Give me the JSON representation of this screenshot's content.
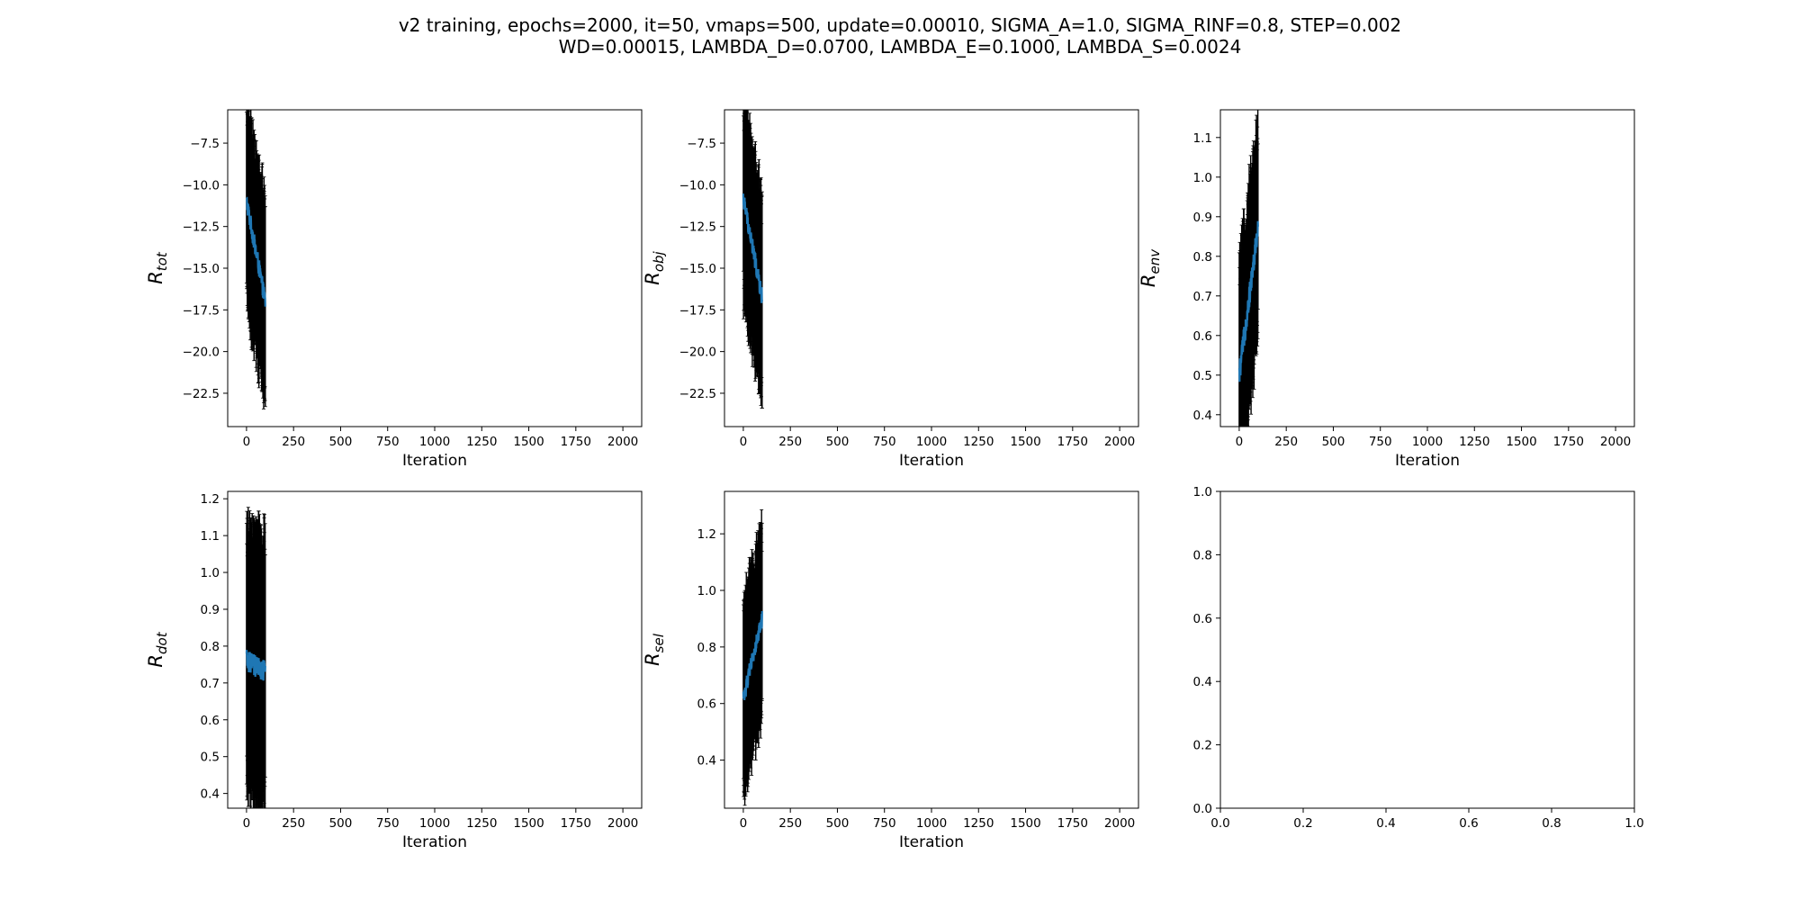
{
  "figure": {
    "title_line1": "v2 training, epochs=2000, it=50, vmaps=500, update=0.00010, SIGMA_A=1.0, SIGMA_RINF=0.8, STEP=0.002",
    "title_line2": "WD=0.00015, LAMBDA_D=0.0700, LAMBDA_E=0.1000, LAMBDA_S=0.0024"
  },
  "colors": {
    "line": "#1f77b4",
    "errorbar": "#000000",
    "axes": "#000000"
  },
  "chart_data": [
    {
      "type": "line",
      "ylabel_base": "R",
      "ylabel_sub": "tot",
      "xlabel": "Iteration",
      "xlim": [
        -100,
        2100
      ],
      "ylim": [
        -24.5,
        -5.5
      ],
      "xticks": [
        0,
        250,
        500,
        750,
        1000,
        1250,
        1500,
        1750,
        2000
      ],
      "yticks": [
        -22.5,
        -20.0,
        -17.5,
        -15.0,
        -12.5,
        -10.0,
        -7.5
      ],
      "series": [
        {
          "x_range": [
            0,
            100
          ],
          "start": -11.0,
          "end": -17.0,
          "noise": 0.55,
          "err": 5.8
        }
      ]
    },
    {
      "type": "line",
      "ylabel_base": "R",
      "ylabel_sub": "obj",
      "xlabel": "Iteration",
      "xlim": [
        -100,
        2100
      ],
      "ylim": [
        -24.5,
        -5.5
      ],
      "xticks": [
        0,
        250,
        500,
        750,
        1000,
        1250,
        1500,
        1750,
        2000
      ],
      "yticks": [
        -22.5,
        -20.0,
        -17.5,
        -15.0,
        -12.5,
        -10.0,
        -7.5
      ],
      "series": [
        {
          "x_range": [
            0,
            100
          ],
          "start": -10.8,
          "end": -16.8,
          "noise": 0.55,
          "err": 5.8
        }
      ]
    },
    {
      "type": "line",
      "ylabel_base": "R",
      "ylabel_sub": "env",
      "xlabel": "Iteration",
      "xlim": [
        -100,
        2100
      ],
      "ylim": [
        0.37,
        1.17
      ],
      "xticks": [
        0,
        250,
        500,
        750,
        1000,
        1250,
        1500,
        1750,
        2000
      ],
      "yticks": [
        0.4,
        0.5,
        0.6,
        0.7,
        0.8,
        0.9,
        1.0,
        1.1
      ],
      "series": [
        {
          "x_range": [
            0,
            100
          ],
          "start": 0.5,
          "end": 0.87,
          "noise": 0.03,
          "err": 0.26
        }
      ]
    },
    {
      "type": "line",
      "ylabel_base": "R",
      "ylabel_sub": "dot",
      "xlabel": "Iteration",
      "xlim": [
        -100,
        2100
      ],
      "ylim": [
        0.36,
        1.22
      ],
      "xticks": [
        0,
        250,
        500,
        750,
        1000,
        1250,
        1500,
        1750,
        2000
      ],
      "yticks": [
        0.4,
        0.5,
        0.6,
        0.7,
        0.8,
        0.9,
        1.0,
        1.1,
        1.2
      ],
      "series": [
        {
          "x_range": [
            0,
            100
          ],
          "start": 0.76,
          "end": 0.73,
          "noise": 0.03,
          "err": 0.34
        }
      ]
    },
    {
      "type": "line",
      "ylabel_base": "R",
      "ylabel_sub": "sel",
      "xlabel": "Iteration",
      "xlim": [
        -100,
        2100
      ],
      "ylim": [
        0.23,
        1.35
      ],
      "xticks": [
        0,
        250,
        500,
        750,
        1000,
        1250,
        1500,
        1750,
        2000
      ],
      "yticks": [
        0.4,
        0.6,
        0.8,
        1.0,
        1.2
      ],
      "series": [
        {
          "x_range": [
            0,
            100
          ],
          "start": 0.62,
          "end": 0.9,
          "noise": 0.03,
          "err": 0.32
        }
      ]
    },
    {
      "type": "line",
      "ylabel_base": "",
      "ylabel_sub": "",
      "xlabel": "",
      "xlim": [
        0.0,
        1.0
      ],
      "ylim": [
        0.0,
        1.0
      ],
      "xticks": [
        0.0,
        0.2,
        0.4,
        0.6,
        0.8,
        1.0
      ],
      "yticks": [
        0.0,
        0.2,
        0.4,
        0.6,
        0.8,
        1.0
      ],
      "series": []
    }
  ]
}
